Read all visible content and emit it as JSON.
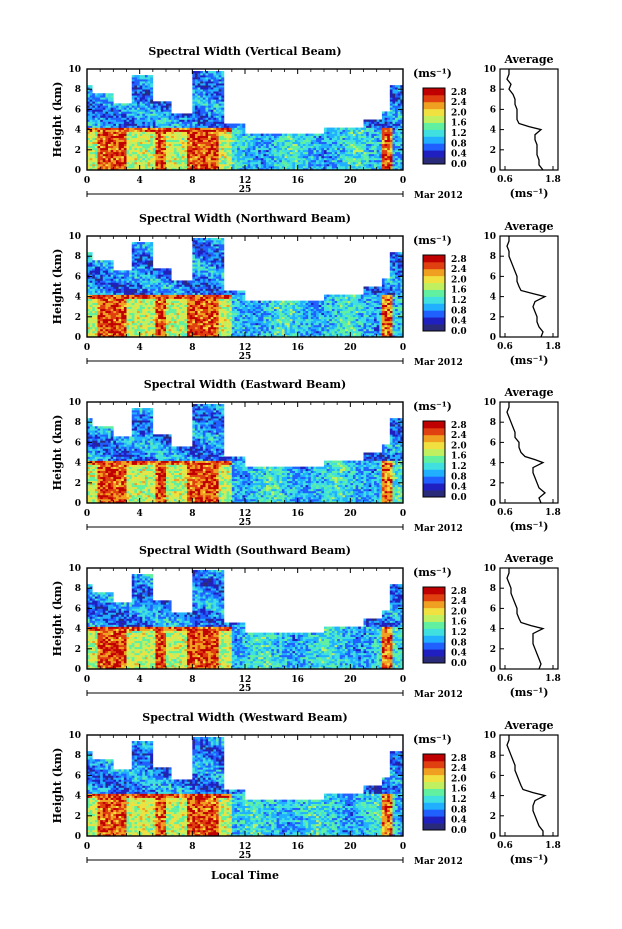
{
  "figure": {
    "date_label": "Mar 2012",
    "date_day": "25",
    "x_axis_title": "Local Time",
    "colorbar_units": "(ms⁻¹)",
    "colorbar_ticks": [
      "0.0",
      "0.4",
      "0.8",
      "1.2",
      "1.6",
      "2.0",
      "2.4",
      "2.8"
    ],
    "average_title": "Average",
    "average_xunit": "(ms⁻¹)",
    "y_label": "Height (km)",
    "colors": [
      "#2a2a7a",
      "#2020c0",
      "#2060ff",
      "#20b0ff",
      "#40e0e0",
      "#60f0a0",
      "#c0f060",
      "#f0e040",
      "#f0a020",
      "#e04010",
      "#c00000"
    ]
  },
  "chart_data": [
    {
      "type": "heatmap",
      "title": "Spectral Width (Vertical Beam)",
      "xlabel": "Local Time",
      "ylabel": "Height (km)",
      "x_ticks": [
        "0",
        "4",
        "8",
        "12",
        "16",
        "20",
        "0"
      ],
      "y_ticks": [
        "0",
        "2",
        "4",
        "6",
        "8",
        "10"
      ],
      "xlim": [
        0,
        24
      ],
      "ylim": [
        0,
        10
      ],
      "colorbar_range": [
        0.0,
        2.8
      ],
      "average": {
        "title": "Average",
        "xlim": [
          0.6,
          1.8
        ],
        "x_ticks": [
          "0.6",
          "1.8"
        ],
        "height": [
          0,
          0.5,
          1,
          1.5,
          2,
          2.5,
          3,
          3.5,
          4,
          4.3,
          4.6,
          5,
          5.5,
          6,
          6.5,
          7,
          7.5,
          8,
          8.5,
          9,
          9.5,
          10
        ],
        "value": [
          1.55,
          1.45,
          1.45,
          1.4,
          1.4,
          1.4,
          1.35,
          1.35,
          1.5,
          1.2,
          0.95,
          0.9,
          0.9,
          0.9,
          0.85,
          0.85,
          0.8,
          0.7,
          0.75,
          0.65,
          0.7,
          0.7
        ]
      }
    },
    {
      "type": "heatmap",
      "title": "Spectral Width (Northward Beam)",
      "xlabel": "Local Time",
      "ylabel": "Height (km)",
      "x_ticks": [
        "0",
        "4",
        "8",
        "12",
        "16",
        "20",
        "0"
      ],
      "y_ticks": [
        "0",
        "2",
        "4",
        "6",
        "8",
        "10"
      ],
      "xlim": [
        0,
        24
      ],
      "ylim": [
        0,
        10
      ],
      "colorbar_range": [
        0.0,
        2.8
      ],
      "average": {
        "title": "Average",
        "xlim": [
          0.6,
          1.8
        ],
        "x_ticks": [
          "0.6",
          "1.8"
        ],
        "height": [
          0,
          0.5,
          1,
          1.5,
          2,
          2.5,
          3,
          3.5,
          4,
          4.3,
          4.6,
          5,
          5.5,
          6,
          6.5,
          7,
          7.5,
          8,
          8.5,
          9,
          9.5,
          10
        ],
        "value": [
          1.5,
          1.55,
          1.45,
          1.4,
          1.4,
          1.35,
          1.3,
          1.35,
          1.6,
          1.3,
          1.0,
          0.95,
          0.9,
          0.9,
          0.85,
          0.8,
          0.75,
          0.7,
          0.7,
          0.65,
          0.7,
          0.7
        ]
      }
    },
    {
      "type": "heatmap",
      "title": "Spectral Width (Eastward Beam)",
      "xlabel": "Local Time",
      "ylabel": "Height (km)",
      "x_ticks": [
        "0",
        "4",
        "8",
        "12",
        "16",
        "20",
        "0"
      ],
      "y_ticks": [
        "0",
        "2",
        "4",
        "6",
        "8",
        "10"
      ],
      "xlim": [
        0,
        24
      ],
      "ylim": [
        0,
        10
      ],
      "colorbar_range": [
        0.0,
        2.8
      ],
      "average": {
        "title": "Average",
        "xlim": [
          0.6,
          1.8
        ],
        "x_ticks": [
          "0.6",
          "1.8"
        ],
        "height": [
          0,
          0.5,
          1,
          1.5,
          2,
          2.5,
          3,
          3.5,
          4,
          4.3,
          4.6,
          5,
          5.5,
          6,
          6.5,
          7,
          7.5,
          8,
          8.5,
          9,
          9.5,
          10
        ],
        "value": [
          1.5,
          1.45,
          1.6,
          1.45,
          1.4,
          1.35,
          1.3,
          1.3,
          1.55,
          1.35,
          1.1,
          1.0,
          0.95,
          0.95,
          0.85,
          0.85,
          0.8,
          0.75,
          0.7,
          0.65,
          0.7,
          0.7
        ]
      }
    },
    {
      "type": "heatmap",
      "title": "Spectral Width (Southward Beam)",
      "xlabel": "Local Time",
      "ylabel": "Height (km)",
      "x_ticks": [
        "0",
        "4",
        "8",
        "12",
        "16",
        "20",
        "0"
      ],
      "y_ticks": [
        "0",
        "2",
        "4",
        "6",
        "8",
        "10"
      ],
      "xlim": [
        0,
        24
      ],
      "ylim": [
        0,
        10
      ],
      "colorbar_range": [
        0.0,
        2.8
      ],
      "average": {
        "title": "Average",
        "xlim": [
          0.6,
          1.8
        ],
        "x_ticks": [
          "0.6",
          "1.8"
        ],
        "height": [
          0,
          0.5,
          1,
          1.5,
          2,
          2.5,
          3,
          3.5,
          4,
          4.3,
          4.6,
          5,
          5.5,
          6,
          6.5,
          7,
          7.5,
          8,
          8.5,
          9,
          9.5,
          10
        ],
        "value": [
          1.45,
          1.5,
          1.45,
          1.4,
          1.35,
          1.3,
          1.3,
          1.3,
          1.55,
          1.25,
          1.0,
          0.95,
          0.9,
          0.9,
          0.85,
          0.8,
          0.75,
          0.75,
          0.7,
          0.65,
          0.7,
          0.7
        ]
      }
    },
    {
      "type": "heatmap",
      "title": "Spectral Width (Westward Beam)",
      "xlabel": "Local Time",
      "ylabel": "Height (km)",
      "x_ticks": [
        "0",
        "4",
        "8",
        "12",
        "16",
        "20",
        "0"
      ],
      "y_ticks": [
        "0",
        "2",
        "4",
        "6",
        "8",
        "10"
      ],
      "xlim": [
        0,
        24
      ],
      "ylim": [
        0,
        10
      ],
      "colorbar_range": [
        0.0,
        2.8
      ],
      "average": {
        "title": "Average",
        "xlim": [
          0.6,
          1.8
        ],
        "x_ticks": [
          "0.6",
          "1.8"
        ],
        "height": [
          0,
          0.5,
          1,
          1.5,
          2,
          2.5,
          3,
          3.5,
          4,
          4.3,
          4.6,
          5,
          5.5,
          6,
          6.5,
          7,
          7.5,
          8,
          8.5,
          9,
          9.5,
          10
        ],
        "value": [
          1.55,
          1.55,
          1.45,
          1.4,
          1.35,
          1.3,
          1.3,
          1.35,
          1.6,
          1.3,
          1.05,
          1.0,
          0.95,
          0.9,
          0.85,
          0.85,
          0.8,
          0.75,
          0.7,
          0.65,
          0.7,
          0.7
        ]
      }
    }
  ]
}
